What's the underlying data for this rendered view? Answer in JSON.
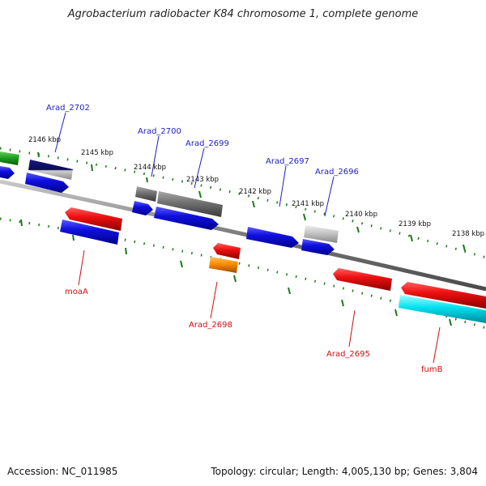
{
  "title": "Agrobacterium radiobacter K84 chromosome 1, complete genome",
  "footer": {
    "accession": "Accession: NC_011985",
    "summary": "Topology: circular; Length: 4,005,130 bp; Genes: 3,804"
  },
  "colors": {
    "backbone": "#7a7a7a",
    "tick": "#1a7a1a",
    "label_top": "#1f1fbf",
    "label_bottom": "#cc1111"
  },
  "scale_labels": [
    "2146 kbp",
    "2145 kbp",
    "2144 kbp",
    "2143 kbp",
    "2142 kbp",
    "2141 kbp",
    "2140 kbp",
    "2139 kbp",
    "2138 kbp"
  ],
  "gene_labels": {
    "Arad_2702": "Arad_2702",
    "Arad_2700": "Arad_2700",
    "Arad_2699": "Arad_2699",
    "Arad_2697": "Arad_2697",
    "Arad_2696": "Arad_2696",
    "moaA": "moaA",
    "Arad_2698": "Arad_2698",
    "Arad_2695": "Arad_2695",
    "fumB": "fumB"
  }
}
